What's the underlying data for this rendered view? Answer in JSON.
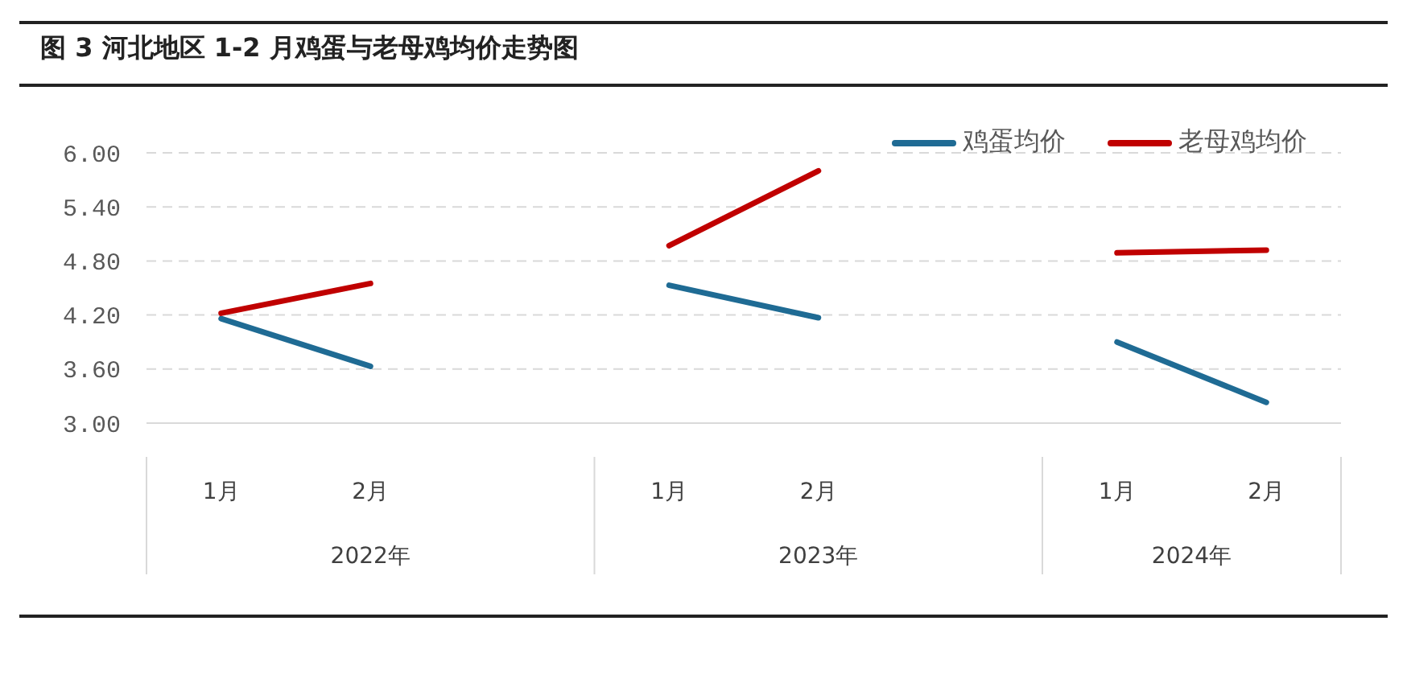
{
  "chart_data": {
    "type": "line",
    "title": "图 3 河北地区 1-2 月鸡蛋与老母鸡均价走势图",
    "categories": [
      "1月",
      "2月",
      null,
      "1月",
      "2月",
      null,
      "1月",
      "2月"
    ],
    "annotations": [
      "2022年",
      "2023年",
      "2024年"
    ],
    "series": [
      {
        "name": "鸡蛋均价",
        "color": "#1f6b94",
        "values": [
          4.16,
          3.63,
          null,
          4.53,
          4.17,
          null,
          3.9,
          3.23
        ]
      },
      {
        "name": "老母鸡均价",
        "color": "#c00000",
        "values": [
          4.22,
          4.55,
          null,
          4.97,
          5.8,
          null,
          4.89,
          4.92
        ]
      }
    ],
    "ylim": [
      3,
      6
    ],
    "yticks": [
      {
        "value": 3,
        "label": "3.00"
      },
      {
        "value": 3.6,
        "label": "3.60"
      },
      {
        "value": 4.2,
        "label": "4.20"
      },
      {
        "value": 4.8,
        "label": "4.80"
      },
      {
        "value": 5.4,
        "label": "5.40"
      },
      {
        "value": 6,
        "label": "6.00"
      }
    ],
    "grid": "y",
    "legend": "top right",
    "line_style": "solid"
  }
}
